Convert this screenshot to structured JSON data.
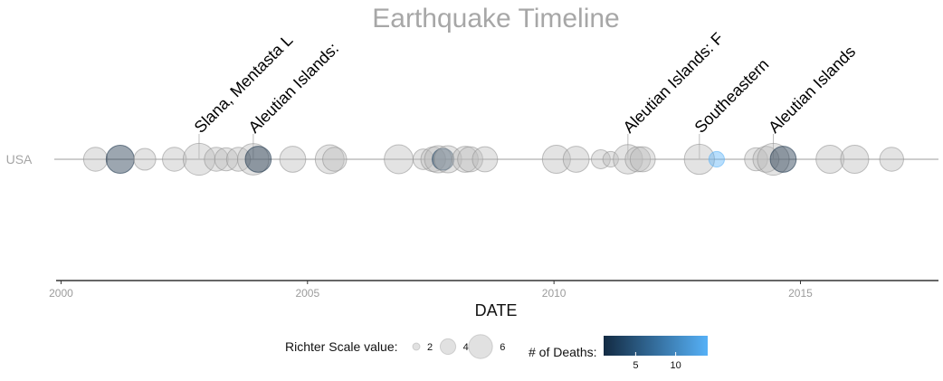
{
  "chart_data": {
    "type": "scatter",
    "title": "Earthquake Timeline",
    "x_axis": {
      "label": "DATE",
      "ticks": [
        2000,
        2005,
        2010,
        2015
      ],
      "range": [
        1999.9,
        2017.8
      ]
    },
    "y_axis": {
      "categories": [
        "USA"
      ]
    },
    "colors": {
      "title": "#a7a7a7",
      "grid_line": "#bdbdbd",
      "axis": "#333333",
      "point_fill": "#bdbdbd",
      "point_stroke": "#8e8e8e",
      "death_low": "#132b43",
      "death_high": "#56b1f7",
      "annotation_text": "#000000",
      "tick_text": "#9c9c9c"
    },
    "series": [
      {
        "country": "USA",
        "points": [
          {
            "date": 2000.7,
            "richter": 6.0,
            "deaths": null
          },
          {
            "date": 2001.2,
            "richter": 7.0,
            "deaths": 1
          },
          {
            "date": 2001.7,
            "richter": 5.5,
            "deaths": null
          },
          {
            "date": 2002.3,
            "richter": 6.0,
            "deaths": null
          },
          {
            "date": 2002.8,
            "richter": 7.9,
            "deaths": null
          },
          {
            "date": 2003.15,
            "richter": 6.0,
            "deaths": null
          },
          {
            "date": 2003.35,
            "richter": 5.8,
            "deaths": null
          },
          {
            "date": 2003.6,
            "richter": 6.0,
            "deaths": null
          },
          {
            "date": 2003.9,
            "richter": 7.8,
            "deaths": null
          },
          {
            "date": 2004.0,
            "richter": 6.5,
            "deaths": 1
          },
          {
            "date": 2004.7,
            "richter": 6.5,
            "deaths": null
          },
          {
            "date": 2005.45,
            "richter": 7.2,
            "deaths": null
          },
          {
            "date": 2005.55,
            "richter": 6.0,
            "deaths": null
          },
          {
            "date": 2006.85,
            "richter": 7.2,
            "deaths": null
          },
          {
            "date": 2007.35,
            "richter": 5.2,
            "deaths": null
          },
          {
            "date": 2007.55,
            "richter": 6.2,
            "deaths": null
          },
          {
            "date": 2007.65,
            "richter": 6.8,
            "deaths": null
          },
          {
            "date": 2007.75,
            "richter": 5.5,
            "deaths": 3
          },
          {
            "date": 2007.85,
            "richter": 6.8,
            "deaths": null
          },
          {
            "date": 2008.2,
            "richter": 6.5,
            "deaths": null
          },
          {
            "date": 2008.3,
            "richter": 6.3,
            "deaths": null
          },
          {
            "date": 2008.6,
            "richter": 6.3,
            "deaths": null
          },
          {
            "date": 2010.05,
            "richter": 7.0,
            "deaths": null
          },
          {
            "date": 2010.45,
            "richter": 6.5,
            "deaths": null
          },
          {
            "date": 2010.95,
            "richter": 4.8,
            "deaths": null
          },
          {
            "date": 2011.15,
            "richter": 4.0,
            "deaths": null
          },
          {
            "date": 2011.5,
            "richter": 7.3,
            "deaths": null
          },
          {
            "date": 2011.7,
            "richter": 6.3,
            "deaths": null
          },
          {
            "date": 2011.8,
            "richter": 6.3,
            "deaths": null
          },
          {
            "date": 2012.95,
            "richter": 7.5,
            "deaths": null
          },
          {
            "date": 2013.3,
            "richter": 4.0,
            "deaths": 14
          },
          {
            "date": 2014.1,
            "richter": 5.8,
            "deaths": null
          },
          {
            "date": 2014.3,
            "richter": 6.5,
            "deaths": null
          },
          {
            "date": 2014.45,
            "richter": 7.9,
            "deaths": null
          },
          {
            "date": 2014.65,
            "richter": 6.5,
            "deaths": 1
          },
          {
            "date": 2015.6,
            "richter": 7.0,
            "deaths": null
          },
          {
            "date": 2016.1,
            "richter": 7.0,
            "deaths": null
          },
          {
            "date": 2016.85,
            "richter": 6.0,
            "deaths": null
          }
        ]
      }
    ],
    "annotations": [
      {
        "date": 2002.8,
        "text": "Slana, Mentasta L"
      },
      {
        "date": 2003.9,
        "text": "Aleutian Islands: "
      },
      {
        "date": 2011.5,
        "text": "Aleutian Islands: F"
      },
      {
        "date": 2012.95,
        "text": "Southeastern"
      },
      {
        "date": 2014.45,
        "text": "Aleutian Islands"
      }
    ],
    "legend": {
      "size": {
        "title": "Richter Scale value:",
        "items": [
          {
            "label": "2",
            "value": 2
          },
          {
            "label": "4",
            "value": 4
          },
          {
            "label": "6",
            "value": 6
          }
        ]
      },
      "color": {
        "title": "# of Deaths:",
        "min": 1,
        "max": 14,
        "ticks": [
          5,
          10
        ],
        "tick_labels": [
          "5",
          "10"
        ]
      }
    }
  }
}
